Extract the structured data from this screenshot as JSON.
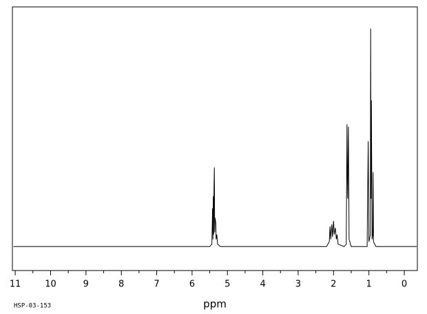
{
  "chart_data": {
    "type": "line",
    "x_label": "ppm",
    "footnote": "HSP-03-153",
    "color": "#000000",
    "x": [
      11.05,
      5.5,
      5.44,
      5.42,
      5.41,
      5.4,
      5.39,
      5.38,
      5.37,
      5.36,
      5.35,
      5.33,
      5.32,
      5.3,
      5.28,
      5.2,
      2.2,
      2.12,
      2.1,
      2.08,
      2.05,
      2.03,
      2.0,
      1.98,
      1.95,
      1.92,
      1.9,
      1.87,
      1.7,
      1.64,
      1.62,
      1.61,
      1.6,
      1.59,
      1.58,
      1.56,
      1.5,
      1.05,
      1.02,
      1.0,
      0.96,
      0.95,
      0.94,
      0.93,
      0.91,
      0.89,
      0.88,
      0.87,
      0.8,
      -0.35
    ],
    "values": [
      0,
      0,
      1,
      16,
      3,
      21,
      5,
      25,
      33,
      6,
      12,
      10,
      3,
      5,
      1,
      0,
      0,
      2,
      8.4,
      3,
      9.2,
      4,
      10.7,
      5,
      7.8,
      3,
      5,
      1,
      0,
      1,
      51,
      30,
      20,
      35,
      50,
      3,
      0,
      0,
      44,
      2,
      5,
      91,
      20,
      61,
      3,
      5,
      31,
      2,
      0,
      0
    ],
    "xlim": [
      11.08,
      -0.37
    ],
    "ylim": [
      -10,
      100
    ],
    "xticks": [
      11,
      10,
      9,
      8,
      7,
      6,
      5,
      4,
      3,
      2,
      1,
      0
    ],
    "xminorticks": [
      10.5,
      9.5,
      8.5,
      7.5,
      6.5,
      5.5,
      4.5,
      3.5,
      2.5,
      1.5,
      0.5
    ]
  }
}
